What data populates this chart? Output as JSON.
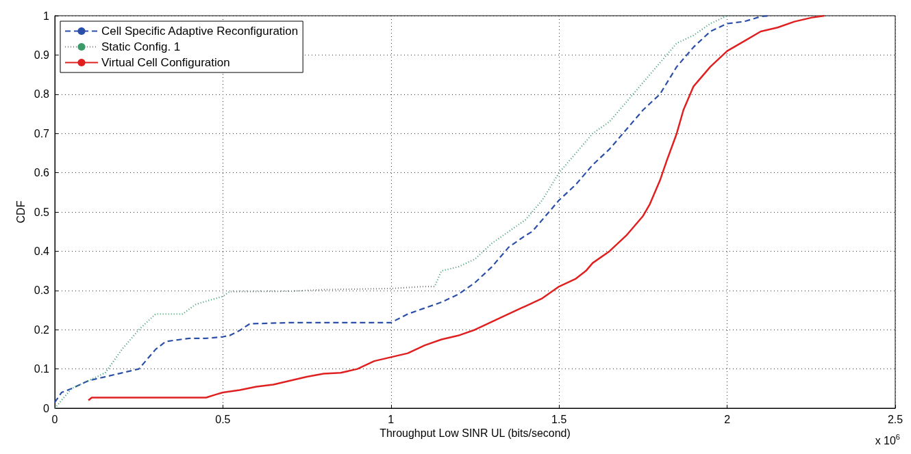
{
  "chart_data": {
    "type": "line",
    "xlabel": "Throughput Low SINR UL (bits/second)",
    "ylabel": "CDF",
    "annotations": [
      "x 10$^{6}$"
    ],
    "xlim": [
      0,
      2.5
    ],
    "xticks": [
      0,
      0.5,
      1,
      1.5,
      2,
      2.5
    ],
    "ylim": [
      0,
      1
    ],
    "yticks": [
      0,
      0.1,
      0.2,
      0.3,
      0.4,
      0.5,
      0.6,
      0.7,
      0.8,
      0.9,
      1
    ],
    "grid": true,
    "legend": "top left",
    "marker": "none",
    "series": [
      {
        "name": "Cell Specific Adaptive Reconfiguration",
        "color": "#2b4fa8",
        "line_style": "dashed",
        "x": [
          0,
          0.02,
          0.05,
          0.1,
          0.15,
          0.2,
          0.25,
          0.27,
          0.3,
          0.33,
          0.4,
          0.45,
          0.5,
          0.52,
          0.55,
          0.58,
          0.7,
          0.8,
          1.0,
          1.05,
          1.1,
          1.15,
          1.2,
          1.25,
          1.3,
          1.35,
          1.4,
          1.42,
          1.47,
          1.5,
          1.55,
          1.6,
          1.65,
          1.7,
          1.75,
          1.8,
          1.85,
          1.9,
          1.95,
          2.0,
          2.05,
          2.1,
          2.13
        ],
        "values": [
          0.015,
          0.04,
          0.05,
          0.07,
          0.08,
          0.09,
          0.1,
          0.12,
          0.15,
          0.17,
          0.178,
          0.178,
          0.182,
          0.185,
          0.198,
          0.215,
          0.218,
          0.218,
          0.218,
          0.24,
          0.255,
          0.27,
          0.29,
          0.32,
          0.36,
          0.41,
          0.44,
          0.45,
          0.5,
          0.53,
          0.57,
          0.62,
          0.66,
          0.71,
          0.76,
          0.8,
          0.87,
          0.92,
          0.96,
          0.98,
          0.985,
          0.998,
          1.0
        ]
      },
      {
        "name": "Static Config. 1",
        "color": "#3a9a6a",
        "line_style": "dotted",
        "x": [
          0,
          0.05,
          0.1,
          0.15,
          0.2,
          0.25,
          0.3,
          0.38,
          0.42,
          0.5,
          0.52,
          0.7,
          0.8,
          1.0,
          1.1,
          1.13,
          1.15,
          1.2,
          1.25,
          1.3,
          1.35,
          1.4,
          1.45,
          1.5,
          1.55,
          1.6,
          1.65,
          1.7,
          1.75,
          1.8,
          1.85,
          1.9,
          1.95,
          2.0
        ],
        "values": [
          0,
          0.05,
          0.07,
          0.09,
          0.15,
          0.2,
          0.24,
          0.24,
          0.265,
          0.285,
          0.297,
          0.298,
          0.302,
          0.305,
          0.31,
          0.31,
          0.35,
          0.36,
          0.38,
          0.42,
          0.45,
          0.48,
          0.53,
          0.6,
          0.65,
          0.7,
          0.73,
          0.78,
          0.83,
          0.88,
          0.93,
          0.95,
          0.98,
          1.0
        ]
      },
      {
        "name": "Virtual Cell Configuration",
        "color": "#e02020",
        "line_style": "solid",
        "x": [
          0.1,
          0.11,
          0.45,
          0.48,
          0.5,
          0.55,
          0.6,
          0.65,
          0.7,
          0.75,
          0.8,
          0.85,
          0.9,
          0.95,
          1.0,
          1.05,
          1.1,
          1.15,
          1.2,
          1.25,
          1.3,
          1.35,
          1.4,
          1.45,
          1.5,
          1.55,
          1.58,
          1.6,
          1.65,
          1.7,
          1.75,
          1.77,
          1.8,
          1.82,
          1.85,
          1.87,
          1.9,
          1.95,
          2.0,
          2.05,
          2.1,
          2.15,
          2.2,
          2.25,
          2.29
        ],
        "values": [
          0.02,
          0.027,
          0.027,
          0.035,
          0.04,
          0.046,
          0.055,
          0.06,
          0.07,
          0.08,
          0.088,
          0.09,
          0.1,
          0.12,
          0.13,
          0.14,
          0.16,
          0.175,
          0.185,
          0.2,
          0.22,
          0.24,
          0.26,
          0.28,
          0.31,
          0.33,
          0.35,
          0.37,
          0.4,
          0.44,
          0.49,
          0.52,
          0.58,
          0.63,
          0.7,
          0.76,
          0.82,
          0.87,
          0.91,
          0.935,
          0.96,
          0.97,
          0.985,
          0.995,
          1.0
        ]
      }
    ]
  }
}
